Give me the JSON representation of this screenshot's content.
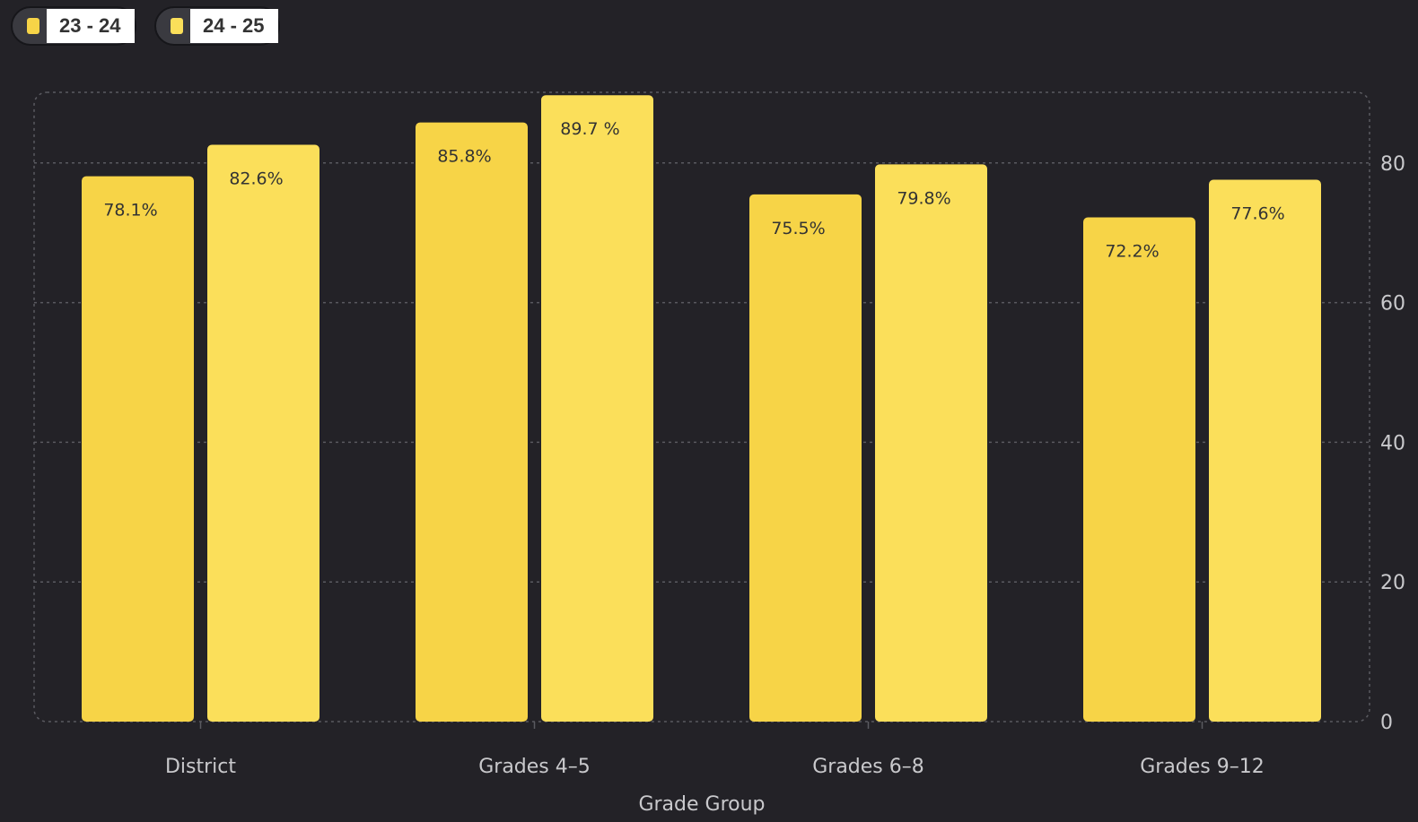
{
  "chart_data": {
    "type": "bar",
    "categories": [
      "District",
      "Grades 4–5",
      "Grades 6–8",
      "Grades 9–12"
    ],
    "series": [
      {
        "name": "23 - 24",
        "values": [
          78.1,
          85.8,
          75.5,
          72.2
        ],
        "labels": [
          "78.1%",
          "85.8%",
          "75.5%",
          "72.2%"
        ],
        "color": "#f7d447"
      },
      {
        "name": "24 - 25",
        "values": [
          82.6,
          89.7,
          79.8,
          77.6
        ],
        "labels": [
          "82.6%",
          "89.7 %",
          "79.8%",
          "77.6%"
        ],
        "color": "#fbdf5a"
      }
    ],
    "xlabel": "Grade Group",
    "ylabel": "",
    "ylim": [
      0,
      90
    ],
    "yticks": [
      0,
      20,
      40,
      60,
      80
    ],
    "ytick_labels": [
      "0",
      "20",
      "40",
      "60",
      "80"
    ],
    "y_axis_position": "right",
    "grid": true,
    "legend_position": "top-left"
  }
}
